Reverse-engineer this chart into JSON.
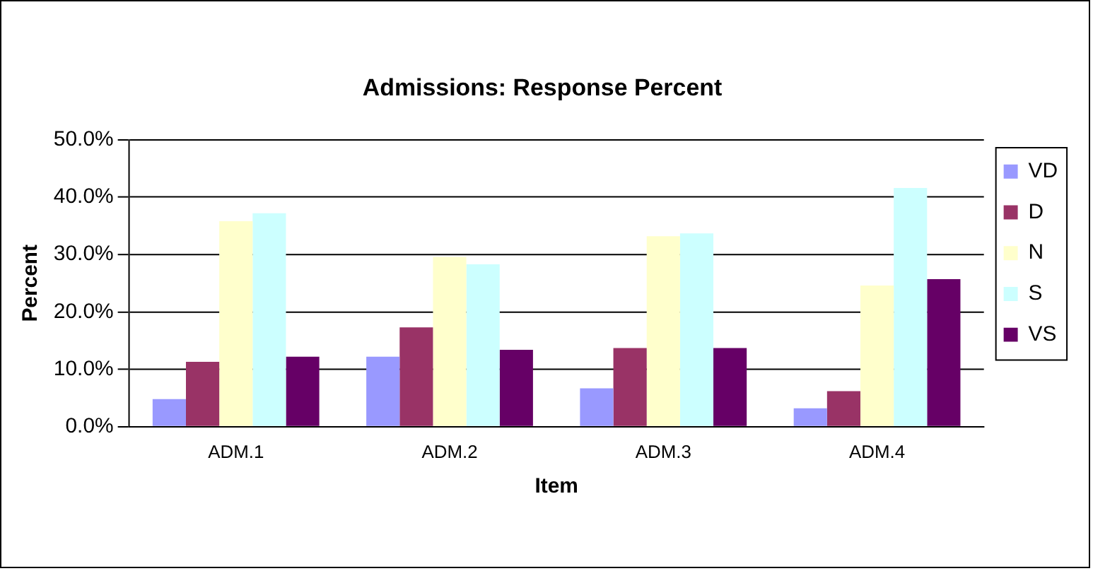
{
  "chart_data": {
    "type": "bar",
    "title": "Admissions: Response Percent",
    "xlabel": "Item",
    "ylabel": "Percent",
    "categories": [
      "ADM.1",
      "ADM.2",
      "ADM.3",
      "ADM.4"
    ],
    "series": [
      {
        "name": "VD",
        "color": "#9999ff",
        "values": [
          4.8,
          12.2,
          6.7,
          3.2
        ]
      },
      {
        "name": "D",
        "color": "#993366",
        "values": [
          11.3,
          17.3,
          13.7,
          6.2
        ]
      },
      {
        "name": "N",
        "color": "#ffffcc",
        "values": [
          35.8,
          29.6,
          33.2,
          24.6
        ]
      },
      {
        "name": "S",
        "color": "#ccffff",
        "values": [
          37.2,
          28.3,
          33.7,
          41.6
        ]
      },
      {
        "name": "VS",
        "color": "#660066",
        "values": [
          12.2,
          13.4,
          13.7,
          25.7
        ]
      }
    ],
    "ylim": [
      0,
      50
    ],
    "yticks": [
      {
        "value": 0,
        "label": "0.0%"
      },
      {
        "value": 10,
        "label": "10.0%"
      },
      {
        "value": 20,
        "label": "20.0%"
      },
      {
        "value": 30,
        "label": "30.0%"
      },
      {
        "value": 40,
        "label": "40.0%"
      },
      {
        "value": 50,
        "label": "50.0%"
      }
    ],
    "grid": "y",
    "legend": "right"
  }
}
